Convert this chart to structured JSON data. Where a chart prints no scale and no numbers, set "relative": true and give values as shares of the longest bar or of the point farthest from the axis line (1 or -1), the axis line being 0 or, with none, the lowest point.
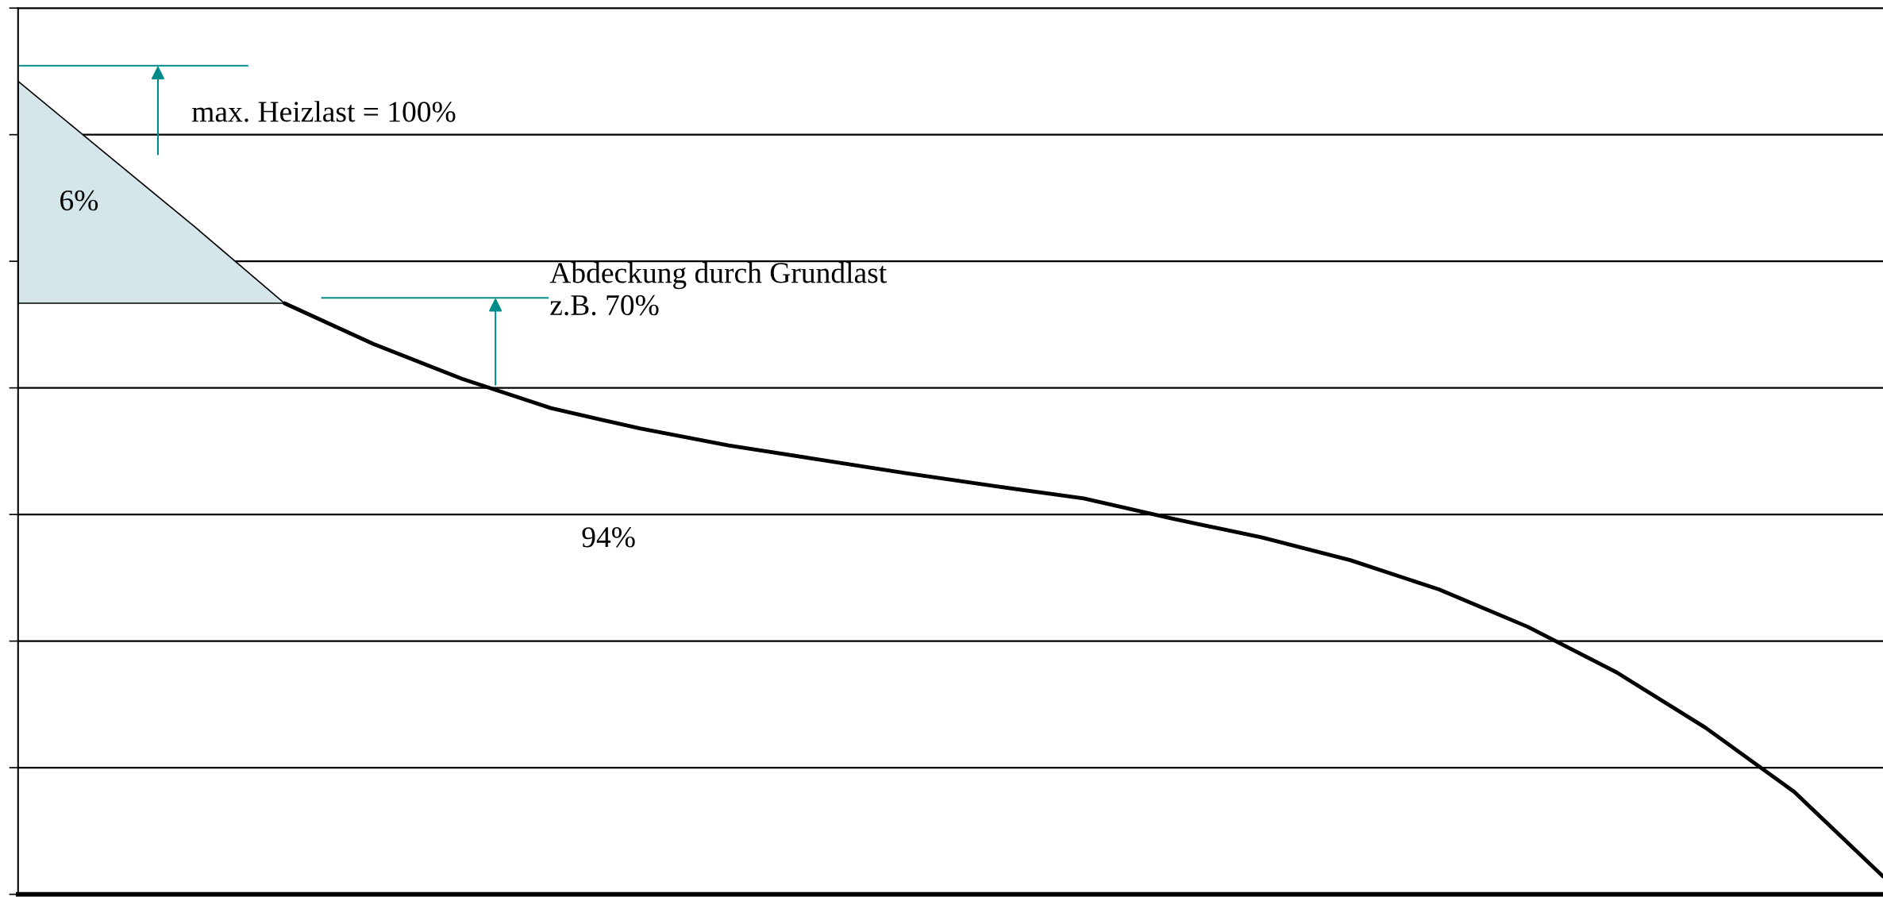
{
  "chart_data": {
    "type": "line",
    "relative": true,
    "grid": "y",
    "categories": [
      null,
      null,
      null,
      null,
      null,
      null,
      null,
      null,
      null,
      null,
      null,
      null,
      null,
      null,
      null,
      null,
      null,
      null,
      null,
      null,
      null,
      null
    ],
    "series": [
      {
        "color": "#000000",
        "values": [
          0.727,
          0.727,
          0.727,
          0.727,
          null,
          null,
          null,
          null,
          null,
          null,
          null,
          null,
          null,
          null,
          null,
          null,
          null,
          null,
          null,
          null,
          null,
          null
        ]
      },
      {
        "type": "area",
        "color": "#d4e6ea",
        "values": [
          1.0,
          0.91,
          0.82,
          0.727,
          null,
          null,
          null,
          null,
          null,
          null,
          null,
          null,
          null,
          null,
          null,
          null,
          null,
          null,
          null,
          null,
          null,
          null
        ]
      },
      {
        "color": "#000000",
        "values": [
          null,
          null,
          null,
          0.727,
          0.677,
          0.634,
          0.598,
          0.573,
          0.552,
          0.535,
          0.518,
          0.502,
          0.487,
          0.462,
          0.439,
          0.411,
          0.375,
          0.329,
          0.273,
          0.205,
          0.126,
          0.022
        ]
      }
    ],
    "annotations": [
      "max. Heizlast = 100%",
      "6%",
      "Abdeckung durch Grundlast\nz.B. 70%",
      "94%"
    ]
  }
}
